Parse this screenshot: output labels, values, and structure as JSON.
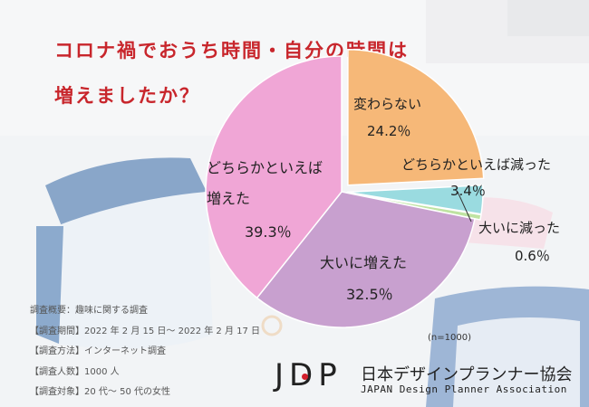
{
  "title": {
    "line1": "コロナ禍でおうち時間・自分の時間は",
    "line2": "増えましたか？"
  },
  "chart_data": {
    "type": "pie",
    "slices": [
      {
        "label": "変わらない",
        "value": 24.2,
        "display": "24.2％",
        "color": "#f6b878"
      },
      {
        "label": "どちらかといえば減った",
        "value": 3.4,
        "display": "3.4％",
        "color": "#9adbe0"
      },
      {
        "label": "大いに減った",
        "value": 0.6,
        "display": "0.6％",
        "color": "#bfe3a2"
      },
      {
        "label": "大いに増えた",
        "value": 32.5,
        "display": "32.5％",
        "color": "#c8a0cf"
      },
      {
        "label": "どちらかといえば増えた",
        "value": 39.3,
        "display": "39.3％",
        "color": "#f0a6d6"
      }
    ],
    "note": "(n=1000)"
  },
  "labels": {
    "no_change": "変わらない",
    "no_change_pct": "24.2％",
    "somewhat_dec": "どちらかといえば減った",
    "somewhat_dec_pct": "3.4％",
    "greatly_dec": "大いに減った",
    "greatly_dec_pct": "0.6％",
    "greatly_inc": "大いに増えた",
    "greatly_inc_pct": "32.5％",
    "somewhat_inc_l1": "どちらかといえば",
    "somewhat_inc_l2": "増えた",
    "somewhat_inc_pct": "39.3％"
  },
  "survey": {
    "overview": "調査概要：趣味に関する調査",
    "period": "【調査期間】2022 年 2 月 15 日～ 2022 年 2 月 17 日",
    "method": "【調査方法】インターネット調査",
    "count": "【調査人数】1000 人",
    "target": "【調査対象】20 代～ 50 代の女性"
  },
  "logo": {
    "mark": "JDP",
    "name_jp": "日本デザインプランナー協会",
    "name_en": "JAPAN Design Planner Association"
  }
}
